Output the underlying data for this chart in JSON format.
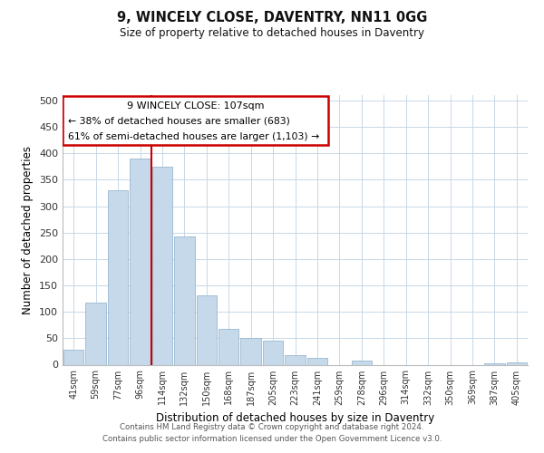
{
  "title": "9, WINCELY CLOSE, DAVENTRY, NN11 0GG",
  "subtitle": "Size of property relative to detached houses in Daventry",
  "xlabel": "Distribution of detached houses by size in Daventry",
  "ylabel": "Number of detached properties",
  "categories": [
    "41sqm",
    "59sqm",
    "77sqm",
    "96sqm",
    "114sqm",
    "132sqm",
    "150sqm",
    "168sqm",
    "187sqm",
    "205sqm",
    "223sqm",
    "241sqm",
    "259sqm",
    "278sqm",
    "296sqm",
    "314sqm",
    "332sqm",
    "350sqm",
    "369sqm",
    "387sqm",
    "405sqm"
  ],
  "values": [
    28,
    117,
    330,
    390,
    375,
    242,
    132,
    68,
    50,
    46,
    18,
    13,
    0,
    7,
    0,
    0,
    0,
    0,
    0,
    3,
    5
  ],
  "bar_color": "#c5d9ea",
  "bar_edge_color": "#9ab8d0",
  "red_line_index": 4,
  "annotation_text_line1": "9 WINCELY CLOSE: 107sqm",
  "annotation_text_line2": "← 38% of detached houses are smaller (683)",
  "annotation_text_line3": "61% of semi-detached houses are larger (1,103) →",
  "annotation_box_color": "#cc0000",
  "ylim": [
    0,
    510
  ],
  "yticks": [
    0,
    50,
    100,
    150,
    200,
    250,
    300,
    350,
    400,
    450,
    500
  ],
  "footer_line1": "Contains HM Land Registry data © Crown copyright and database right 2024.",
  "footer_line2": "Contains public sector information licensed under the Open Government Licence v3.0.",
  "bg_color": "#ffffff",
  "grid_color": "#c8d8e8"
}
